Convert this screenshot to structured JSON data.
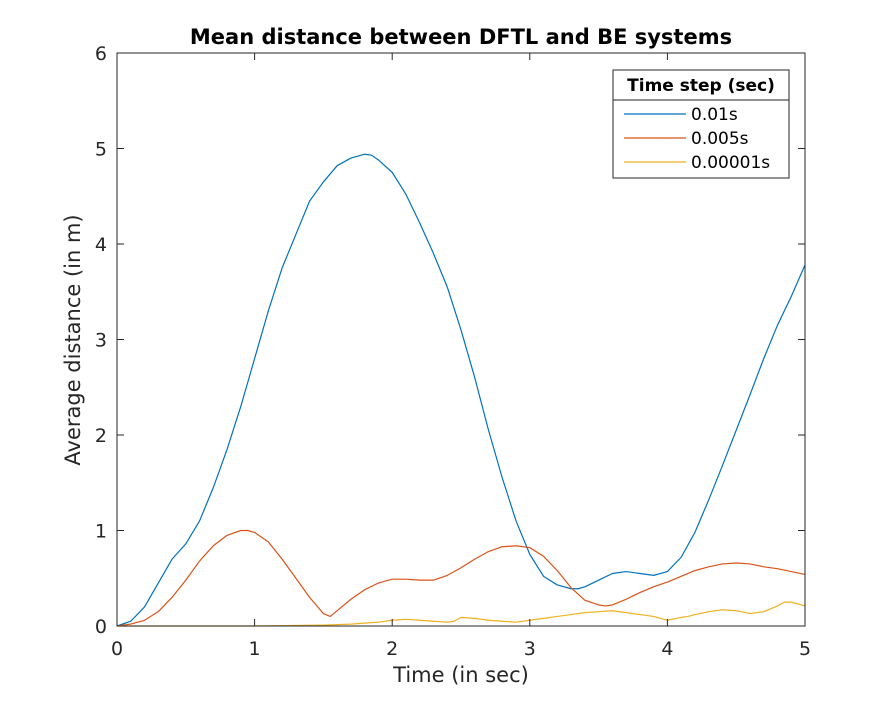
{
  "chart_data": {
    "type": "line",
    "title": "Mean distance between DFTL and BE systems",
    "xlabel": "Time (in sec)",
    "ylabel": "Average distance (in m)",
    "xlim": [
      0,
      5
    ],
    "ylim": [
      0,
      6
    ],
    "xticks": [
      "0",
      "1",
      "2",
      "3",
      "4",
      "5"
    ],
    "yticks": [
      "0",
      "1",
      "2",
      "3",
      "4",
      "5",
      "6"
    ],
    "grid": false,
    "legend": {
      "title": "Time step (sec)",
      "placement": "top-right"
    },
    "series": [
      {
        "name": "0.01s",
        "color": "#0072BD",
        "x": [
          0,
          0.1,
          0.2,
          0.3,
          0.4,
          0.45,
          0.5,
          0.6,
          0.7,
          0.8,
          0.9,
          1.0,
          1.1,
          1.2,
          1.3,
          1.4,
          1.5,
          1.6,
          1.7,
          1.8,
          1.85,
          1.9,
          2.0,
          2.1,
          2.2,
          2.3,
          2.4,
          2.5,
          2.6,
          2.7,
          2.8,
          2.9,
          3.0,
          3.1,
          3.2,
          3.3,
          3.35,
          3.4,
          3.5,
          3.6,
          3.7,
          3.8,
          3.9,
          4.0,
          4.1,
          4.2,
          4.3,
          4.4,
          4.5,
          4.6,
          4.7,
          4.8,
          4.9,
          5.0
        ],
        "values": [
          0,
          0.05,
          0.2,
          0.45,
          0.7,
          0.78,
          0.86,
          1.1,
          1.45,
          1.85,
          2.3,
          2.8,
          3.3,
          3.75,
          4.1,
          4.45,
          4.65,
          4.82,
          4.9,
          4.94,
          4.93,
          4.88,
          4.75,
          4.52,
          4.22,
          3.9,
          3.55,
          3.1,
          2.6,
          2.05,
          1.55,
          1.1,
          0.75,
          0.52,
          0.43,
          0.39,
          0.39,
          0.41,
          0.48,
          0.55,
          0.57,
          0.55,
          0.53,
          0.57,
          0.72,
          0.98,
          1.32,
          1.68,
          2.05,
          2.42,
          2.8,
          3.15,
          3.45,
          3.78
        ]
      },
      {
        "name": "0.005s",
        "color": "#D95319",
        "x": [
          0,
          0.1,
          0.2,
          0.3,
          0.4,
          0.5,
          0.6,
          0.7,
          0.8,
          0.9,
          0.95,
          1.0,
          1.1,
          1.2,
          1.3,
          1.4,
          1.5,
          1.55,
          1.6,
          1.7,
          1.8,
          1.9,
          2.0,
          2.1,
          2.2,
          2.3,
          2.4,
          2.5,
          2.6,
          2.7,
          2.8,
          2.9,
          3.0,
          3.1,
          3.2,
          3.3,
          3.4,
          3.5,
          3.55,
          3.6,
          3.7,
          3.8,
          3.9,
          4.0,
          4.1,
          4.2,
          4.3,
          4.4,
          4.5,
          4.6,
          4.7,
          4.8,
          4.9,
          5.0
        ],
        "values": [
          0,
          0.02,
          0.06,
          0.15,
          0.3,
          0.48,
          0.68,
          0.84,
          0.95,
          1.0,
          1.0,
          0.98,
          0.88,
          0.7,
          0.5,
          0.3,
          0.13,
          0.1,
          0.16,
          0.28,
          0.38,
          0.45,
          0.49,
          0.49,
          0.48,
          0.48,
          0.53,
          0.61,
          0.7,
          0.78,
          0.83,
          0.84,
          0.82,
          0.73,
          0.58,
          0.4,
          0.27,
          0.22,
          0.21,
          0.22,
          0.28,
          0.35,
          0.41,
          0.46,
          0.52,
          0.58,
          0.62,
          0.65,
          0.66,
          0.65,
          0.62,
          0.6,
          0.57,
          0.54
        ]
      },
      {
        "name": "0.00001s",
        "color": "#EDB120",
        "x": [
          0,
          0.5,
          1.0,
          1.5,
          1.7,
          1.8,
          1.9,
          2.0,
          2.1,
          2.2,
          2.3,
          2.4,
          2.45,
          2.5,
          2.6,
          2.7,
          2.8,
          2.9,
          3.0,
          3.1,
          3.2,
          3.3,
          3.4,
          3.5,
          3.6,
          3.7,
          3.8,
          3.9,
          4.0,
          4.1,
          4.15,
          4.2,
          4.3,
          4.4,
          4.5,
          4.6,
          4.7,
          4.8,
          4.85,
          4.9,
          5.0
        ],
        "values": [
          0,
          0,
          0,
          0.01,
          0.02,
          0.03,
          0.04,
          0.06,
          0.07,
          0.06,
          0.05,
          0.04,
          0.05,
          0.09,
          0.08,
          0.06,
          0.05,
          0.04,
          0.06,
          0.08,
          0.1,
          0.12,
          0.14,
          0.15,
          0.16,
          0.14,
          0.12,
          0.1,
          0.06,
          0.09,
          0.1,
          0.12,
          0.15,
          0.17,
          0.16,
          0.13,
          0.15,
          0.21,
          0.25,
          0.25,
          0.21
        ]
      }
    ]
  }
}
